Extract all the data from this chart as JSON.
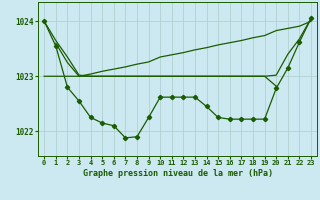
{
  "background_color": "#cce8f0",
  "grid_color": "#aacccc",
  "line_color": "#1a5c00",
  "xlabel": "Graphe pression niveau de la mer (hPa)",
  "xlim": [
    -0.5,
    23.5
  ],
  "ylim": [
    1021.55,
    1024.35
  ],
  "yticks": [
    1022,
    1023,
    1024
  ],
  "xticks": [
    0,
    1,
    2,
    3,
    4,
    5,
    6,
    7,
    8,
    9,
    10,
    11,
    12,
    13,
    14,
    15,
    16,
    17,
    18,
    19,
    20,
    21,
    22,
    23
  ],
  "series1_x": [
    0,
    1,
    2,
    3,
    4,
    5,
    6,
    7,
    8,
    9,
    10,
    11,
    12,
    13,
    14,
    15,
    16,
    17,
    18,
    19,
    20,
    21,
    22,
    23
  ],
  "series1_y": [
    1024.0,
    1023.55,
    1022.8,
    1022.55,
    1022.25,
    1022.15,
    1022.1,
    1021.88,
    1021.9,
    1022.25,
    1022.62,
    1022.62,
    1022.62,
    1022.62,
    1022.45,
    1022.25,
    1022.22,
    1022.22,
    1022.22,
    1022.22,
    1022.78,
    1023.15,
    1023.62,
    1024.05
  ],
  "series2_x": [
    0,
    1,
    2,
    3,
    4,
    5,
    6,
    7,
    8,
    9,
    10,
    11,
    12,
    13,
    14,
    15,
    16,
    17,
    18,
    19,
    20,
    21,
    22,
    23
  ],
  "series2_y": [
    1023.0,
    1023.0,
    1023.0,
    1023.0,
    1023.04,
    1023.09,
    1023.13,
    1023.17,
    1023.22,
    1023.26,
    1023.35,
    1023.39,
    1023.43,
    1023.48,
    1023.52,
    1023.57,
    1023.61,
    1023.65,
    1023.7,
    1023.74,
    1023.83,
    1023.87,
    1023.91,
    1024.0
  ],
  "series3_x": [
    0,
    1,
    2,
    3,
    4,
    5,
    6,
    7,
    8,
    9,
    10,
    11,
    12,
    13,
    14,
    15,
    16,
    17,
    18,
    19,
    20,
    21,
    22,
    23
  ],
  "series3_y": [
    1024.0,
    1023.65,
    1023.35,
    1023.02,
    1023.0,
    1023.0,
    1023.0,
    1023.0,
    1023.0,
    1023.0,
    1023.0,
    1023.0,
    1023.0,
    1023.0,
    1023.0,
    1023.0,
    1023.0,
    1023.0,
    1023.0,
    1023.0,
    1023.02,
    1023.4,
    1023.68,
    1024.05
  ],
  "series4_x": [
    1,
    2,
    3,
    4,
    5,
    6,
    7,
    8,
    9,
    10,
    11,
    12,
    13,
    14,
    15,
    16,
    17,
    18,
    19,
    20
  ],
  "series4_y": [
    1023.6,
    1023.25,
    1023.0,
    1023.0,
    1023.0,
    1023.0,
    1023.0,
    1023.0,
    1023.0,
    1023.0,
    1023.0,
    1023.0,
    1023.0,
    1023.0,
    1023.0,
    1023.0,
    1023.0,
    1023.0,
    1023.0,
    1022.82
  ],
  "marker": "D",
  "markersize": 2.2,
  "linewidth": 0.9
}
